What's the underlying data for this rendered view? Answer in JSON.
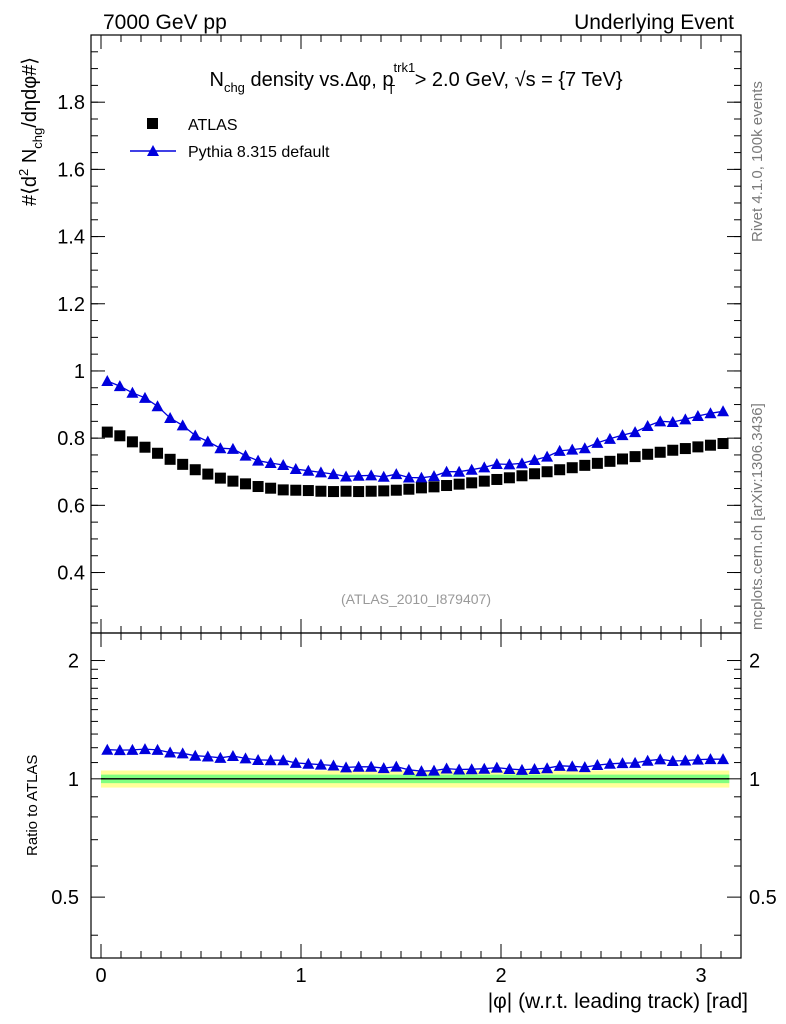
{
  "header": {
    "left": "7000 GeV pp",
    "right": "Underlying Event"
  },
  "side": {
    "rivet": "Rivet 4.1.0,  100k events",
    "mcplots": "mcplots.cern.ch [arXiv:1306.3436]"
  },
  "colors": {
    "atlas": "#000000",
    "pythia": "#0000dd",
    "band_outer": "#ffff99",
    "band_inner": "#80ff80"
  },
  "chart_data": [
    {
      "type": "scatter",
      "panel": "main",
      "title": "N_chg density vs.Δφ, p_T^trk1 > 2.0 GeV, √s = {7 TeV}",
      "title_parts": {
        "n": "N",
        "n_sub": "chg",
        "mid": " density vs.Δφ, p",
        "p_sup": "trk1",
        "p_sub": "T",
        "tail": " > 2.0 GeV, ",
        "sqrt": "√s = {7 TeV}"
      },
      "ylabel": "#⟨d² N_chg/dηdφ#⟩",
      "ylabel_parts": {
        "a": "#⟨d",
        "sup": "2",
        "b": " N",
        "sub": "chg",
        "c": "/dηdφ#⟩"
      },
      "xlim": [
        -0.05,
        3.2
      ],
      "ylim": [
        0.22,
        2.0
      ],
      "yticks": [
        0.4,
        0.6,
        0.8,
        1,
        1.2,
        1.4,
        1.6,
        1.8
      ],
      "ytick_labels": [
        "0.4",
        "0.6",
        "0.8",
        "1",
        "1.2",
        "1.4",
        "1.6",
        "1.8"
      ],
      "legend": [
        "ATLAS",
        "Pythia 8.315 default"
      ],
      "legend_position": "top-left",
      "watermark": "(ATLAS_2010_I879407)",
      "x": [
        0.0314,
        0.0942,
        0.1571,
        0.2199,
        0.2827,
        0.3456,
        0.4084,
        0.4712,
        0.5341,
        0.5969,
        0.6597,
        0.7226,
        0.7854,
        0.8482,
        0.9111,
        0.9739,
        1.0367,
        1.0996,
        1.1624,
        1.2252,
        1.2881,
        1.3509,
        1.4137,
        1.4765,
        1.5394,
        1.6022,
        1.665,
        1.7279,
        1.7907,
        1.8535,
        1.9164,
        1.9792,
        2.042,
        2.1049,
        2.1677,
        2.2305,
        2.2934,
        2.3562,
        2.419,
        2.4819,
        2.5447,
        2.6075,
        2.6704,
        2.7332,
        2.796,
        2.8588,
        2.9217,
        2.9845,
        3.0473,
        3.1102
      ],
      "series": [
        {
          "name": "ATLAS",
          "marker": "square",
          "values": [
            0.818,
            0.807,
            0.789,
            0.773,
            0.755,
            0.737,
            0.722,
            0.706,
            0.693,
            0.681,
            0.672,
            0.664,
            0.656,
            0.651,
            0.646,
            0.645,
            0.644,
            0.642,
            0.641,
            0.642,
            0.641,
            0.642,
            0.643,
            0.645,
            0.648,
            0.652,
            0.655,
            0.659,
            0.663,
            0.667,
            0.672,
            0.677,
            0.682,
            0.688,
            0.694,
            0.7,
            0.706,
            0.712,
            0.719,
            0.725,
            0.731,
            0.738,
            0.745,
            0.752,
            0.758,
            0.764,
            0.769,
            0.774,
            0.779,
            0.784
          ]
        },
        {
          "name": "Pythia 8.315 default",
          "marker": "triangle",
          "values": [
            0.97,
            0.955,
            0.935,
            0.92,
            0.895,
            0.86,
            0.838,
            0.808,
            0.79,
            0.77,
            0.768,
            0.748,
            0.733,
            0.726,
            0.72,
            0.708,
            0.703,
            0.698,
            0.693,
            0.686,
            0.688,
            0.689,
            0.685,
            0.693,
            0.683,
            0.682,
            0.687,
            0.7,
            0.7,
            0.706,
            0.713,
            0.723,
            0.722,
            0.725,
            0.735,
            0.745,
            0.762,
            0.766,
            0.77,
            0.786,
            0.798,
            0.809,
            0.818,
            0.836,
            0.85,
            0.848,
            0.856,
            0.866,
            0.874,
            0.88
          ]
        }
      ]
    },
    {
      "type": "scatter",
      "panel": "ratio",
      "ylabel": "Ratio to ATLAS",
      "xlabel": "|φ| (w.r.t. leading track) [rad]",
      "xlim": [
        -0.05,
        3.2
      ],
      "ylim": [
        0.35,
        2.35
      ],
      "xticks": [
        0,
        1,
        2,
        3
      ],
      "xtick_labels": [
        "0",
        "1",
        "2",
        "3"
      ],
      "yticks": [
        0.5,
        1,
        2
      ],
      "ytick_labels": [
        "0.5",
        "1",
        "2"
      ],
      "band_outer": [
        0.95,
        1.05
      ],
      "band_inner": [
        0.975,
        1.025
      ],
      "series": [
        {
          "name": "Pythia 8.315 default",
          "marker": "triangle",
          "values": [
            1.186,
            1.183,
            1.185,
            1.19,
            1.185,
            1.167,
            1.161,
            1.145,
            1.14,
            1.131,
            1.143,
            1.127,
            1.117,
            1.115,
            1.115,
            1.098,
            1.092,
            1.087,
            1.081,
            1.069,
            1.073,
            1.073,
            1.065,
            1.074,
            1.054,
            1.046,
            1.049,
            1.062,
            1.056,
            1.058,
            1.061,
            1.068,
            1.059,
            1.054,
            1.059,
            1.064,
            1.079,
            1.076,
            1.071,
            1.084,
            1.092,
            1.096,
            1.098,
            1.112,
            1.121,
            1.11,
            1.113,
            1.119,
            1.122,
            1.122
          ]
        }
      ]
    }
  ]
}
